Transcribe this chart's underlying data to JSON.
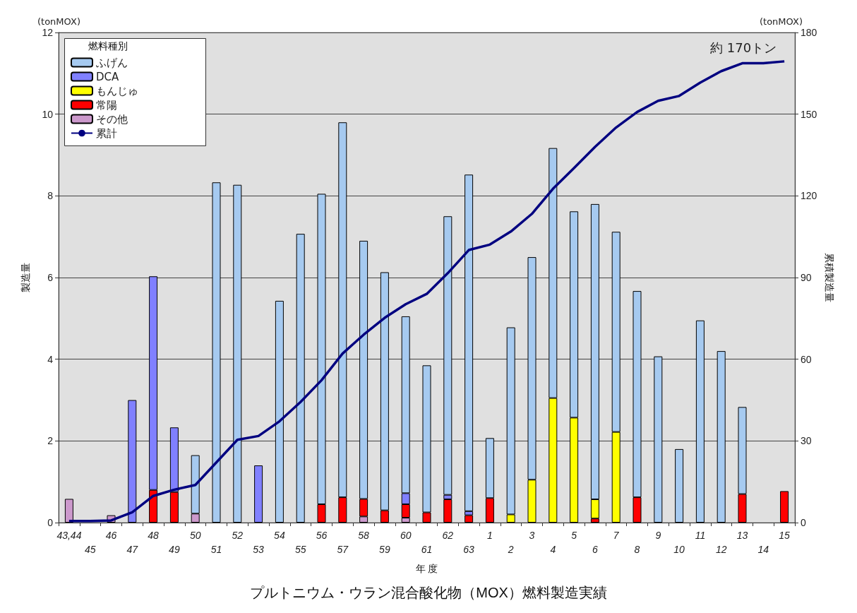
{
  "chart_data": {
    "type": "bar",
    "title": "プルトニウム・ウラン混合酸化物（MOX）燃料製造実績",
    "xlabel": "年 度",
    "ylabel": "製造量",
    "y2label": "累積製造量",
    "legend_title": "燃料種別",
    "annotations": [
      "(tonMOX)",
      "(tonMOX)",
      "約 170トン"
    ],
    "categories": [
      "43,44",
      "45",
      "46",
      "47",
      "48",
      "49",
      "50",
      "51",
      "52",
      "53",
      "54",
      "55",
      "56",
      "57",
      "58",
      "59",
      "60",
      "61",
      "62",
      "63",
      "1",
      "2",
      "3",
      "4",
      "5",
      "6",
      "7",
      "8",
      "9",
      "10",
      "11",
      "12",
      "13",
      "14",
      "15"
    ],
    "stacked": true,
    "grid": "y",
    "legend": "top left",
    "ylim": [
      0,
      12
    ],
    "yticks": [
      0,
      2,
      4,
      6,
      8,
      10,
      12
    ],
    "y2lim": [
      0,
      180
    ],
    "y2ticks": [
      0,
      30,
      60,
      90,
      120,
      150,
      180
    ],
    "series": [
      {
        "name": "その他",
        "color": "#cc99cc",
        "values": [
          0.58,
          0,
          0.18,
          0,
          0,
          0,
          0.22,
          0,
          0,
          0,
          0,
          0,
          0,
          0,
          0.15,
          0,
          0.12,
          0,
          0,
          0,
          0,
          0,
          0,
          0,
          0,
          0,
          0,
          0,
          0,
          0,
          0,
          0,
          0,
          0,
          0
        ]
      },
      {
        "name": "常陽",
        "color": "#ff0000",
        "values": [
          0,
          0,
          0,
          0,
          0.8,
          0.75,
          0,
          0,
          0,
          0,
          0,
          0,
          0.45,
          0.62,
          0.43,
          0.3,
          0.33,
          0.25,
          0.57,
          0.18,
          0.6,
          0,
          0,
          0,
          0,
          0.1,
          0,
          0.62,
          0,
          0,
          0,
          0,
          0.7,
          0,
          0.77
        ]
      },
      {
        "name": "もんじゅ",
        "color": "#ffff00",
        "values": [
          0,
          0,
          0,
          0,
          0,
          0,
          0,
          0,
          0,
          0,
          0,
          0,
          0,
          0,
          0,
          0,
          0,
          0,
          0,
          0,
          0,
          0.2,
          1.05,
          3.05,
          2.57,
          0.47,
          2.22,
          0,
          0,
          0,
          0,
          0,
          0,
          0,
          0
        ]
      },
      {
        "name": "DCA",
        "color": "#8080ff",
        "values": [
          0,
          0,
          0,
          3.0,
          5.23,
          1.58,
          0,
          0,
          0,
          1.4,
          0,
          0,
          0,
          0,
          0,
          0,
          0.27,
          0,
          0.11,
          0.1,
          0,
          0,
          0,
          0,
          0,
          0,
          0,
          0,
          0,
          0,
          0,
          0,
          0,
          0,
          0
        ]
      },
      {
        "name": "ふげん",
        "color": "#a6caf0",
        "values": [
          0,
          0,
          0,
          0,
          0,
          0,
          1.43,
          8.33,
          8.27,
          0,
          5.43,
          7.07,
          7.6,
          9.18,
          6.32,
          5.83,
          4.33,
          3.6,
          6.82,
          8.24,
          1.47,
          4.58,
          5.45,
          6.12,
          5.05,
          7.23,
          4.9,
          5.05,
          4.07,
          1.8,
          4.95,
          4.2,
          2.13,
          0,
          0
        ]
      },
      {
        "name": "累計",
        "type": "line",
        "axis": "y2",
        "color": "#000080",
        "marker": "none",
        "values": [
          0.6,
          0.6,
          0.8,
          3.8,
          9.8,
          12.1,
          13.8,
          22.1,
          30.4,
          31.8,
          37.2,
          44.3,
          52.3,
          62.1,
          69,
          75.2,
          80.2,
          84,
          91.6,
          100.1,
          102.1,
          106.9,
          113.4,
          122.6,
          130.2,
          138,
          145.1,
          150.8,
          154.9,
          156.7,
          161.6,
          165.8,
          168.7,
          168.7,
          169.4
        ]
      }
    ]
  }
}
